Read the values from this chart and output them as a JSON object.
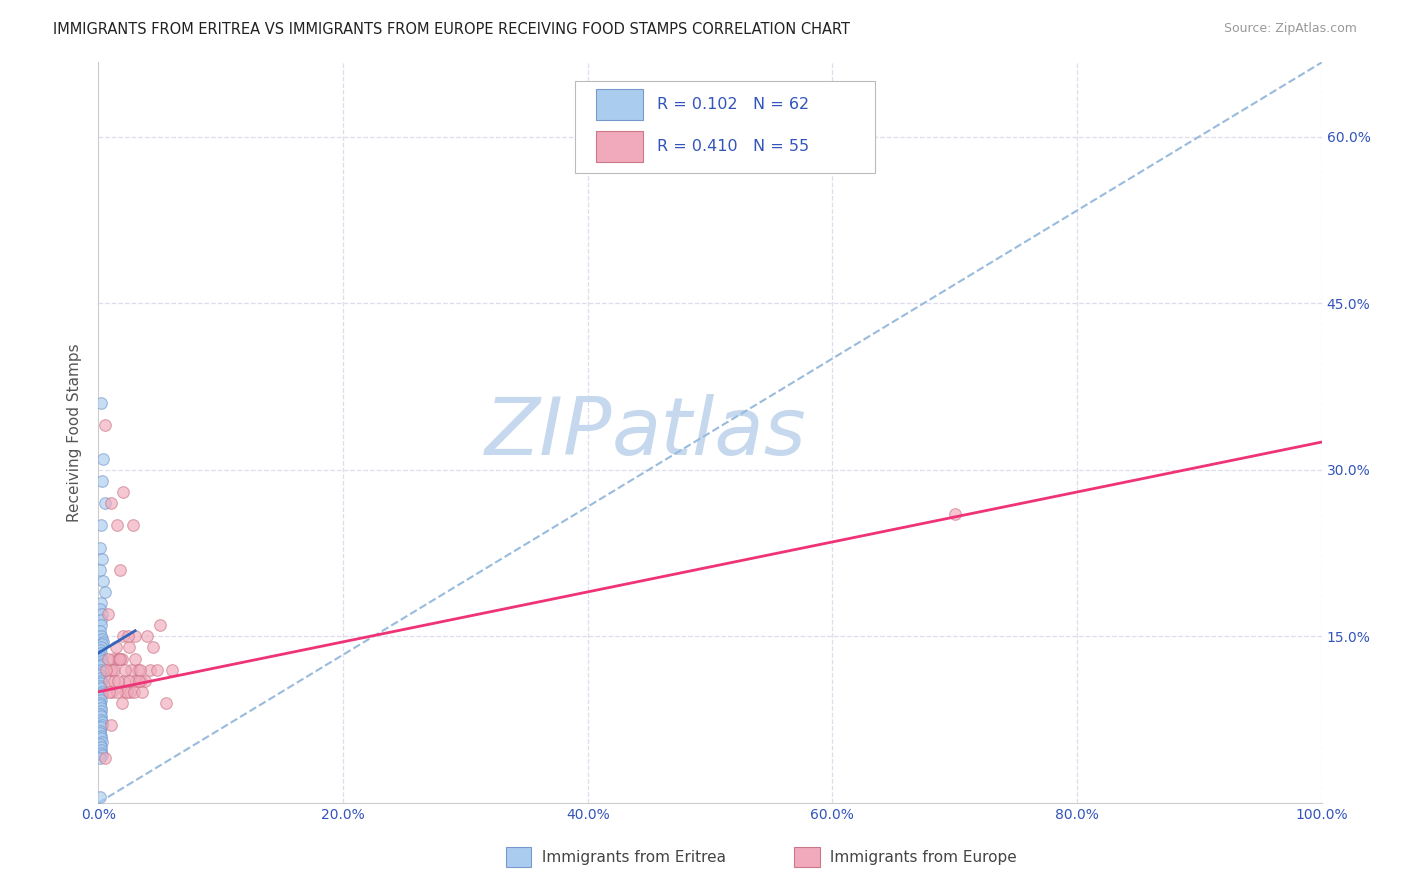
{
  "title": "IMMIGRANTS FROM ERITREA VS IMMIGRANTS FROM EUROPE RECEIVING FOOD STAMPS CORRELATION CHART",
  "source": "Source: ZipAtlas.com",
  "ylabel": "Receiving Food Stamps",
  "xlim": [
    0,
    1.0
  ],
  "ylim": [
    0,
    0.667
  ],
  "x_ticks": [
    0.0,
    0.2,
    0.4,
    0.6,
    0.8,
    1.0
  ],
  "x_tick_labels": [
    "0.0%",
    "20.0%",
    "40.0%",
    "60.0%",
    "80.0%",
    "100.0%"
  ],
  "y_ticks": [
    0.15,
    0.3,
    0.45,
    0.6
  ],
  "y_tick_labels": [
    "15.0%",
    "30.0%",
    "45.0%",
    "60.0%"
  ],
  "title_color": "#222222",
  "title_fontsize": 10.5,
  "source_color": "#999999",
  "source_fontsize": 9,
  "scatter_blue_color": "#aaccee",
  "scatter_blue_edge": "#7799cc",
  "scatter_pink_color": "#f0aabb",
  "scatter_pink_edge": "#cc7788",
  "scatter_size": 70,
  "scatter_alpha": 0.65,
  "line_blue_color": "#3366bb",
  "line_pink_color": "#ee3377",
  "line_dashed_color": "#99bbdd",
  "R_eritrea": 0.102,
  "N_eritrea": 62,
  "R_europe": 0.41,
  "N_europe": 55,
  "legend_text_color": "#3355bb",
  "legend_label_color": "#333333",
  "watermark_zip": "ZIP",
  "watermark_atlas": "atlas",
  "watermark_color_zip": "#c5d8ee",
  "watermark_color_atlas": "#c5d8ee",
  "watermark_fontsize": 58,
  "background_color": "#ffffff",
  "grid_color": "#ddddee",
  "blue_scatter_x": [
    0.002,
    0.004,
    0.003,
    0.005,
    0.002,
    0.001,
    0.003,
    0.001,
    0.004,
    0.005,
    0.002,
    0.001,
    0.003,
    0.002,
    0.002,
    0.001,
    0.002,
    0.003,
    0.004,
    0.003,
    0.002,
    0.001,
    0.002,
    0.001,
    0.002,
    0.003,
    0.003,
    0.001,
    0.002,
    0.003,
    0.001,
    0.002,
    0.002,
    0.002,
    0.001,
    0.002,
    0.003,
    0.003,
    0.001,
    0.002,
    0.001,
    0.001,
    0.002,
    0.002,
    0.001,
    0.002,
    0.002,
    0.003,
    0.003,
    0.002,
    0.001,
    0.001,
    0.002,
    0.002,
    0.003,
    0.001,
    0.002,
    0.002,
    0.002,
    0.003,
    0.001,
    0.001
  ],
  "blue_scatter_y": [
    0.36,
    0.31,
    0.29,
    0.27,
    0.25,
    0.23,
    0.22,
    0.21,
    0.2,
    0.19,
    0.18,
    0.175,
    0.17,
    0.165,
    0.16,
    0.155,
    0.15,
    0.148,
    0.145,
    0.143,
    0.14,
    0.138,
    0.135,
    0.132,
    0.13,
    0.128,
    0.125,
    0.123,
    0.12,
    0.118,
    0.115,
    0.112,
    0.11,
    0.108,
    0.105,
    0.103,
    0.1,
    0.098,
    0.095,
    0.093,
    0.09,
    0.088,
    0.085,
    0.083,
    0.08,
    0.078,
    0.075,
    0.073,
    0.07,
    0.068,
    0.065,
    0.063,
    0.06,
    0.058,
    0.055,
    0.053,
    0.05,
    0.048,
    0.045,
    0.043,
    0.04,
    0.005
  ],
  "pink_scatter_x": [
    0.005,
    0.01,
    0.02,
    0.03,
    0.015,
    0.008,
    0.04,
    0.025,
    0.012,
    0.05,
    0.06,
    0.045,
    0.018,
    0.03,
    0.022,
    0.011,
    0.035,
    0.016,
    0.028,
    0.009,
    0.042,
    0.02,
    0.032,
    0.014,
    0.026,
    0.01,
    0.019,
    0.031,
    0.013,
    0.023,
    0.038,
    0.017,
    0.027,
    0.011,
    0.021,
    0.034,
    0.015,
    0.025,
    0.048,
    0.018,
    0.029,
    0.013,
    0.022,
    0.036,
    0.016,
    0.008,
    0.055,
    0.006,
    0.033,
    0.024,
    0.7,
    0.01,
    0.005,
    0.019,
    0.009
  ],
  "pink_scatter_y": [
    0.34,
    0.27,
    0.28,
    0.15,
    0.25,
    0.17,
    0.15,
    0.14,
    0.13,
    0.16,
    0.12,
    0.14,
    0.21,
    0.13,
    0.1,
    0.12,
    0.11,
    0.13,
    0.25,
    0.11,
    0.12,
    0.15,
    0.12,
    0.14,
    0.1,
    0.12,
    0.13,
    0.11,
    0.12,
    0.1,
    0.11,
    0.13,
    0.12,
    0.1,
    0.11,
    0.12,
    0.1,
    0.11,
    0.12,
    0.13,
    0.1,
    0.11,
    0.12,
    0.1,
    0.11,
    0.13,
    0.09,
    0.12,
    0.11,
    0.15,
    0.26,
    0.07,
    0.04,
    0.09,
    0.1
  ],
  "blue_line_x0": 0.0,
  "blue_line_x1": 0.03,
  "blue_line_y0": 0.135,
  "blue_line_y1": 0.155,
  "pink_line_x0": 0.0,
  "pink_line_x1": 1.0,
  "pink_line_y0": 0.1,
  "pink_line_y1": 0.325,
  "dash_line_x0": 0.0,
  "dash_line_x1": 1.0,
  "dash_line_y0": 0.0,
  "dash_line_y1": 0.667
}
